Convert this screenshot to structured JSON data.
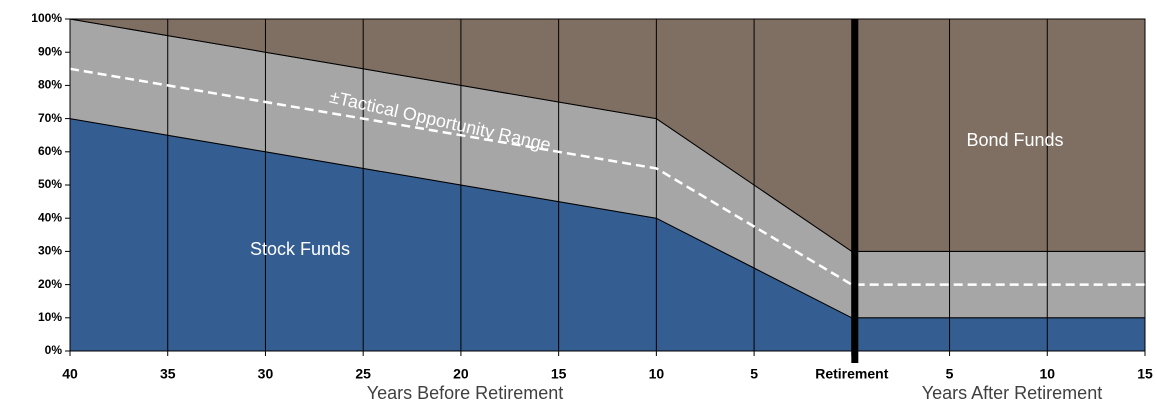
{
  "chart_data": {
    "type": "stacked_area",
    "categories": [
      "40",
      "35",
      "30",
      "25",
      "20",
      "15",
      "10",
      "5",
      "Retirement",
      "5",
      "10",
      "15"
    ],
    "series": [
      {
        "name": "Stock Funds",
        "color": "#345d91",
        "values": [
          70,
          65,
          60,
          55,
          50,
          45,
          40,
          25,
          10,
          10,
          10,
          10
        ]
      },
      {
        "name": "±Tactical Opportunity Range",
        "color": "#a6a6a6",
        "values": [
          30,
          30,
          30,
          30,
          30,
          30,
          30,
          25,
          20,
          20,
          20,
          20
        ]
      },
      {
        "name": "Bond Funds",
        "color": "#7f6f62",
        "values": [
          0,
          5,
          10,
          15,
          20,
          25,
          30,
          50,
          70,
          70,
          70,
          70
        ]
      }
    ],
    "midline": {
      "color": "#ffffff",
      "values": [
        85,
        80,
        75,
        70,
        65,
        60,
        55,
        37.5,
        20,
        20,
        20,
        20
      ]
    },
    "x_labels": [
      "Years Before Retirement",
      "Years After Retirement"
    ],
    "ylim": [
      0,
      100
    ],
    "yticks": [
      {
        "value": 0,
        "label": "0%"
      },
      {
        "value": 10,
        "label": "10%"
      },
      {
        "value": 20,
        "label": "20%"
      },
      {
        "value": 30,
        "label": "30%"
      },
      {
        "value": 40,
        "label": "40%"
      },
      {
        "value": 50,
        "label": "50%"
      },
      {
        "value": 60,
        "label": "60%"
      },
      {
        "value": 70,
        "label": "70%"
      },
      {
        "value": 80,
        "label": "80%"
      },
      {
        "value": 90,
        "label": "90%"
      },
      {
        "value": 100,
        "label": "100%"
      }
    ],
    "grid": true
  }
}
